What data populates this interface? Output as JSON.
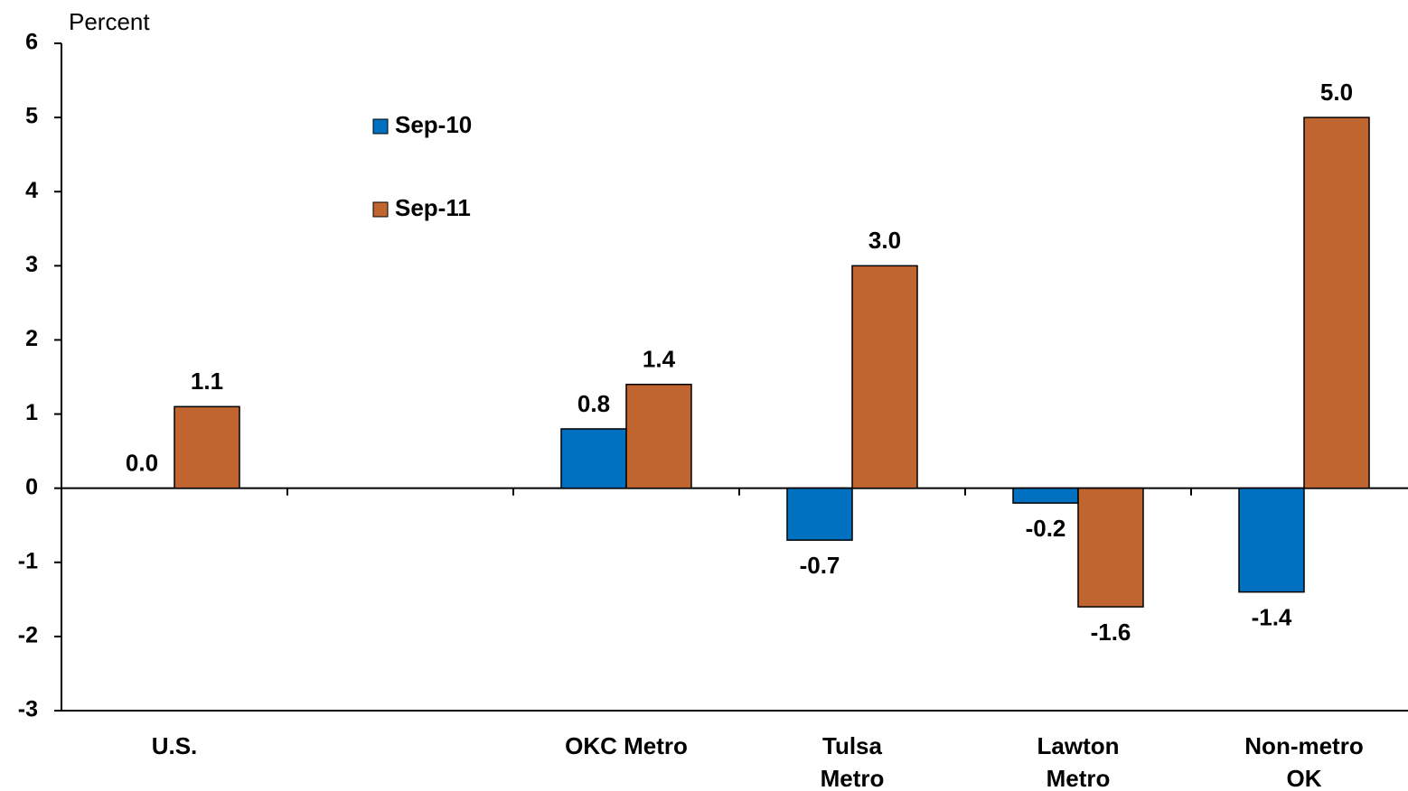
{
  "chart_data": {
    "type": "bar",
    "y_label": "Percent",
    "categories": [
      "U.S.",
      null,
      "OKC Metro",
      "Tulsa Metro",
      "Lawton Metro",
      "Non-metro OK"
    ],
    "series": [
      {
        "name": "Sep-10",
        "color": "#0070c0",
        "values": [
          0.0,
          null,
          0.8,
          -0.7,
          -0.2,
          -1.4
        ],
        "value_labels": [
          "0.0",
          null,
          "0.8",
          "-0.7",
          "-0.2",
          "-1.4"
        ]
      },
      {
        "name": "Sep-11",
        "color": "#c0652f",
        "values": [
          1.1,
          null,
          1.4,
          3.0,
          -1.6,
          5.0
        ],
        "value_labels": [
          "1.1",
          null,
          "1.4",
          "3.0",
          "-1.6",
          "5.0"
        ]
      }
    ],
    "ylim": [
      -3,
      6
    ],
    "yticks": [
      -3,
      -2,
      -1,
      0,
      1,
      2,
      3,
      4,
      5,
      6
    ],
    "grid": false,
    "legend": "upper left"
  }
}
